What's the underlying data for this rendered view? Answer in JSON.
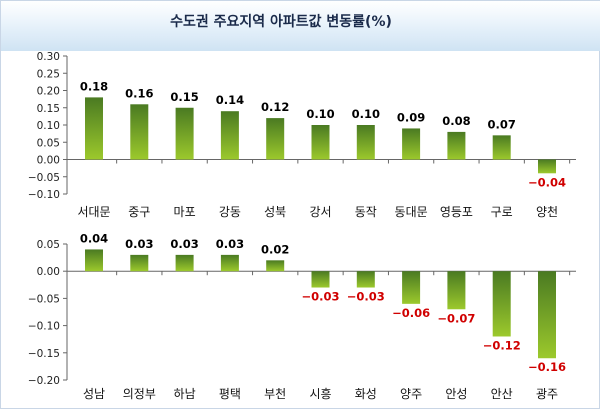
{
  "title": "수도권 주요지역 아파트값 변동률(%)",
  "colors": {
    "bar_top": "#4a7a22",
    "bar_bottom": "#9cc92c",
    "negative_label": "#d00000",
    "positive_label": "#000000"
  },
  "chart_data": [
    {
      "type": "bar",
      "categories": [
        "서대문",
        "중구",
        "마포",
        "강동",
        "성북",
        "강서",
        "동작",
        "동대문",
        "영등포",
        "구로",
        "양천"
      ],
      "values": [
        0.18,
        0.16,
        0.15,
        0.14,
        0.12,
        0.1,
        0.1,
        0.09,
        0.08,
        0.07,
        -0.04
      ],
      "data_labels": [
        "0.18",
        "0.16",
        "0.15",
        "0.14",
        "0.12",
        "0.10",
        "0.10",
        "0.09",
        "0.08",
        "0.07",
        "−0.04"
      ],
      "yticks": [
        "0.30",
        "0.25",
        "0.20",
        "0.15",
        "0.10",
        "0.05",
        "0.00",
        "−0.05",
        "−0.10"
      ],
      "ytick_values": [
        0.3,
        0.25,
        0.2,
        0.15,
        0.1,
        0.05,
        0.0,
        -0.05,
        -0.1
      ],
      "ylim": [
        -0.1,
        0.3
      ],
      "grid": false
    },
    {
      "type": "bar",
      "categories": [
        "성남",
        "의정부",
        "하남",
        "평택",
        "부천",
        "시흥",
        "화성",
        "양주",
        "안성",
        "안산",
        "광주"
      ],
      "values": [
        0.04,
        0.03,
        0.03,
        0.03,
        0.02,
        -0.03,
        -0.03,
        -0.06,
        -0.07,
        -0.12,
        -0.16
      ],
      "data_labels": [
        "0.04",
        "0.03",
        "0.03",
        "0.03",
        "0.02",
        "−0.03",
        "−0.03",
        "−0.06",
        "−0.07",
        "−0.12",
        "−0.16"
      ],
      "yticks": [
        "0.05",
        "0.00",
        "−0.05",
        "−0.10",
        "−0.15",
        "−0.20"
      ],
      "ytick_values": [
        0.05,
        0.0,
        -0.05,
        -0.1,
        -0.15,
        -0.2
      ],
      "ylim": [
        -0.2,
        0.05
      ],
      "grid": false
    }
  ]
}
